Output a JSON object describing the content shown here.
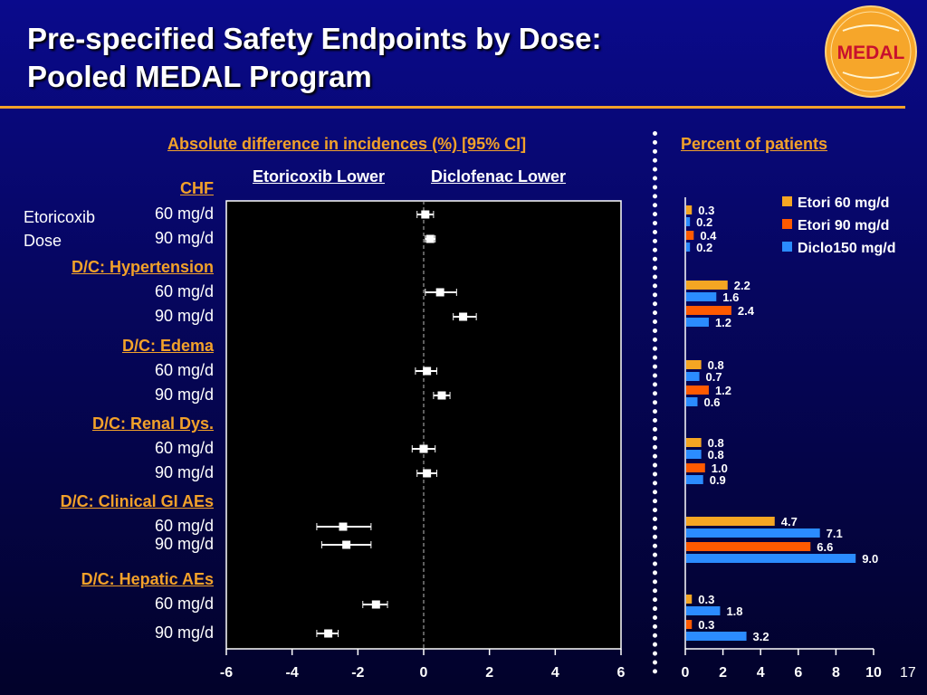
{
  "title_line1": "Pre-specified Safety Endpoints by Dose:",
  "title_line2": "Pooled MEDAL Program",
  "logo_text": "MEDAL",
  "page_number": "17",
  "colors": {
    "accent": "#f2a12a",
    "etori60": "#f5a623",
    "etori90": "#ff5a00",
    "diclo150": "#2b8cff",
    "forest_bg": "#000000"
  },
  "chart_data": [
    {
      "type": "forest",
      "title": "Absolute difference in incidences (%) [95% CI]",
      "left_label": "Etoricoxib Lower",
      "right_label": "Diclofenac Lower",
      "dose_header": "Etoricoxib Dose",
      "xlim": [
        -6,
        6
      ],
      "xticks": [
        "-6",
        "-4",
        "-2",
        "0",
        "2",
        "4",
        "6"
      ],
      "groups": [
        {
          "name": "CHF",
          "rows": [
            {
              "dose": "60 mg/d",
              "est": 0.05,
              "lo": -0.2,
              "hi": 0.3
            },
            {
              "dose": "90 mg/d",
              "est": 0.2,
              "lo": 0.05,
              "hi": 0.35
            }
          ]
        },
        {
          "name": "D/C: Hypertension",
          "rows": [
            {
              "dose": "60 mg/d",
              "est": 0.5,
              "lo": 0.05,
              "hi": 1.0
            },
            {
              "dose": "90 mg/d",
              "est": 1.2,
              "lo": 0.9,
              "hi": 1.6
            }
          ]
        },
        {
          "name": "D/C: Edema",
          "rows": [
            {
              "dose": "60 mg/d",
              "est": 0.1,
              "lo": -0.25,
              "hi": 0.4
            },
            {
              "dose": "90 mg/d",
              "est": 0.55,
              "lo": 0.3,
              "hi": 0.8
            }
          ]
        },
        {
          "name": "D/C: Renal Dys. ",
          "rows": [
            {
              "dose": "60 mg/d",
              "est": 0.0,
              "lo": -0.35,
              "hi": 0.35
            },
            {
              "dose": "90 mg/d",
              "est": 0.1,
              "lo": -0.2,
              "hi": 0.4
            }
          ]
        },
        {
          "name": "D/C: Clinical GI AEs",
          "rows": [
            {
              "dose": "60 mg/d",
              "est": -2.45,
              "lo": -3.25,
              "hi": -1.6
            },
            {
              "dose": "90 mg/d",
              "est": -2.35,
              "lo": -3.1,
              "hi": -1.6
            }
          ]
        },
        {
          "name": "D/C: Hepatic AEs",
          "rows": [
            {
              "dose": "60 mg/d",
              "est": -1.45,
              "lo": -1.85,
              "hi": -1.1
            },
            {
              "dose": "90 mg/d",
              "est": -2.9,
              "lo": -3.25,
              "hi": -2.6
            }
          ]
        }
      ]
    },
    {
      "type": "bar",
      "title": "Percent of patients",
      "orientation": "horizontal",
      "xlim": [
        0,
        10
      ],
      "xticks": [
        "0",
        "2",
        "4",
        "6",
        "8",
        "10"
      ],
      "legend": "top-right",
      "series_names": [
        "Etori 60 mg/d",
        "Etori 90 mg/d",
        "Diclo150 mg/d"
      ],
      "groups": [
        {
          "name": "CHF",
          "bars": [
            {
              "series": "Etori 60 mg/d",
              "value": 0.3,
              "label": "0.3"
            },
            {
              "series": "Diclo150 mg/d",
              "value": 0.2,
              "label": "0.2"
            },
            {
              "series": "Etori 90 mg/d",
              "value": 0.4,
              "label": "0.4"
            },
            {
              "series": "Diclo150 mg/d",
              "value": 0.2,
              "label": "0.2"
            }
          ]
        },
        {
          "name": "D/C: Hypertension",
          "bars": [
            {
              "series": "Etori 60 mg/d",
              "value": 2.2,
              "label": "2.2"
            },
            {
              "series": "Diclo150 mg/d",
              "value": 1.6,
              "label": "1.6"
            },
            {
              "series": "Etori 90 mg/d",
              "value": 2.4,
              "label": "2.4"
            },
            {
              "series": "Diclo150 mg/d",
              "value": 1.2,
              "label": "1.2"
            }
          ]
        },
        {
          "name": "D/C: Edema",
          "bars": [
            {
              "series": "Etori 60 mg/d",
              "value": 0.8,
              "label": "0.8"
            },
            {
              "series": "Diclo150 mg/d",
              "value": 0.7,
              "label": "0.7"
            },
            {
              "series": "Etori 90 mg/d",
              "value": 1.2,
              "label": "1.2"
            },
            {
              "series": "Diclo150 mg/d",
              "value": 0.6,
              "label": "0.6"
            }
          ]
        },
        {
          "name": "D/C: Renal Dys.",
          "bars": [
            {
              "series": "Etori 60 mg/d",
              "value": 0.8,
              "label": "0.8"
            },
            {
              "series": "Diclo150 mg/d",
              "value": 0.8,
              "label": "0.8"
            },
            {
              "series": "Etori 90 mg/d",
              "value": 1.0,
              "label": "1.0"
            },
            {
              "series": "Diclo150 mg/d",
              "value": 0.9,
              "label": "0.9"
            }
          ]
        },
        {
          "name": "D/C: Clinical GI AEs",
          "bars": [
            {
              "series": "Etori 60 mg/d",
              "value": 4.7,
              "label": "4.7"
            },
            {
              "series": "Diclo150 mg/d",
              "value": 7.1,
              "label": "7.1"
            },
            {
              "series": "Etori 90 mg/d",
              "value": 6.6,
              "label": "6.6"
            },
            {
              "series": "Diclo150 mg/d",
              "value": 9.0,
              "label": "9.0"
            }
          ]
        },
        {
          "name": "D/C: Hepatic AEs",
          "bars": [
            {
              "series": "Etori 60 mg/d",
              "value": 0.3,
              "label": "0.3"
            },
            {
              "series": "Diclo150 mg/d",
              "value": 1.8,
              "label": "1.8"
            },
            {
              "series": "Etori 90 mg/d",
              "value": 0.3,
              "label": "0.3"
            },
            {
              "series": "Diclo150 mg/d",
              "value": 3.2,
              "label": "3.2"
            }
          ]
        }
      ]
    }
  ]
}
